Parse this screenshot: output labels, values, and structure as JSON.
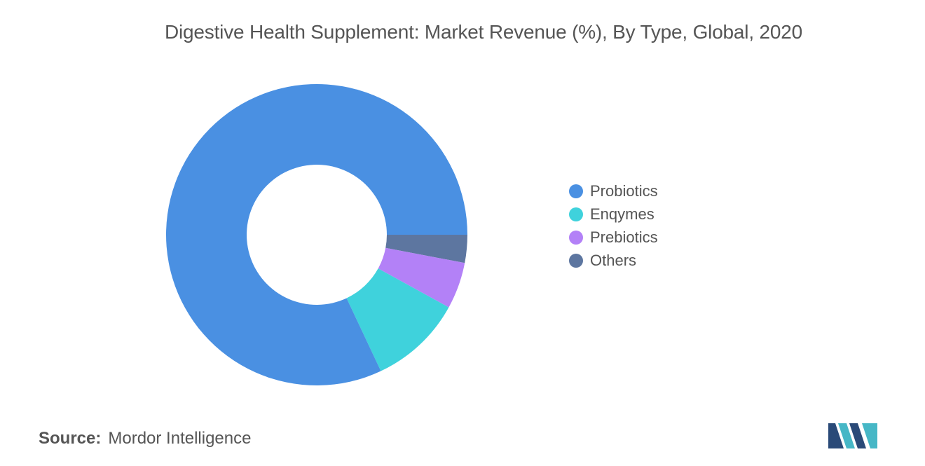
{
  "chart_data": {
    "type": "pie",
    "donut": true,
    "title": "Digestive Health Supplement: Market Revenue (%), By Type, Global, 2020",
    "categories": [
      "Probiotics",
      "Enqymes",
      "Prebiotics",
      "Others"
    ],
    "values": [
      82,
      10,
      5,
      3
    ],
    "colors": [
      "#4a90e2",
      "#3fd2dc",
      "#b381f7",
      "#5d76a0"
    ],
    "legend_position": "right"
  },
  "source": {
    "label": "Source:",
    "text": "Mordor Intelligence"
  },
  "logo": {
    "icon": "mordor-intelligence-logo",
    "colors": [
      "#2a4a78",
      "#46b7c6"
    ]
  }
}
